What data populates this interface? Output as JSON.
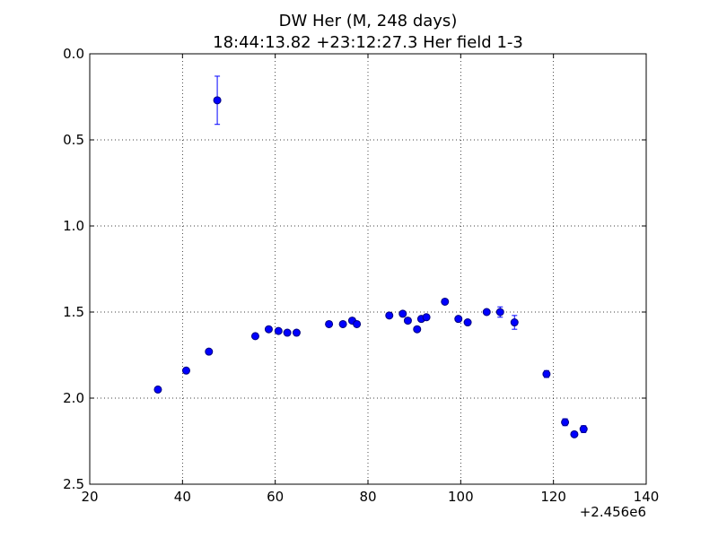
{
  "chart_data": {
    "type": "scatter",
    "title": "DW Her (M, 248 days)",
    "subtitle": "18:44:13.82 +23:12:27.3 Her field 1-3",
    "xlabel": "",
    "ylabel": "",
    "xlim": [
      20,
      140
    ],
    "ylim": [
      0.0,
      2.5
    ],
    "y_inverted": true,
    "grid": true,
    "x_offset_label": "+2.456e6",
    "x_ticks": [
      20,
      40,
      60,
      80,
      100,
      120,
      140
    ],
    "x_tick_labels": [
      "20",
      "40",
      "60",
      "80",
      "100",
      "120",
      "140"
    ],
    "y_ticks": [
      0.0,
      0.5,
      1.0,
      1.5,
      2.0,
      2.5
    ],
    "y_tick_labels": [
      "0.0",
      "0.5",
      "1.0",
      "1.5",
      "2.0",
      "2.5"
    ],
    "series": [
      {
        "marker": "circle",
        "color": "#0000ff",
        "x": [
          34.7,
          40.8,
          45.7,
          47.5,
          55.7,
          58.6,
          60.7,
          62.6,
          64.6,
          71.6,
          74.6,
          76.6,
          77.6,
          84.6,
          87.5,
          88.6,
          90.6,
          91.5,
          92.6,
          96.6,
          99.5,
          101.5,
          105.6,
          108.5,
          111.6,
          118.5,
          122.5,
          124.5,
          126.5
        ],
        "y": [
          1.95,
          1.84,
          1.73,
          0.27,
          1.64,
          1.6,
          1.61,
          1.62,
          1.62,
          1.57,
          1.57,
          1.55,
          1.57,
          1.52,
          1.51,
          1.55,
          1.6,
          1.54,
          1.53,
          1.44,
          1.54,
          1.56,
          1.5,
          1.5,
          1.56,
          1.86,
          2.14,
          2.21,
          2.18
        ],
        "yerr": [
          0.01,
          0.01,
          0.01,
          0.14,
          0.01,
          0.01,
          0.01,
          0.01,
          0.01,
          0.01,
          0.01,
          0.01,
          0.01,
          0.01,
          0.01,
          0.01,
          0.01,
          0.01,
          0.01,
          0.01,
          0.01,
          0.01,
          0.01,
          0.03,
          0.04,
          0.02,
          0.02,
          0.01,
          0.02
        ]
      }
    ]
  }
}
